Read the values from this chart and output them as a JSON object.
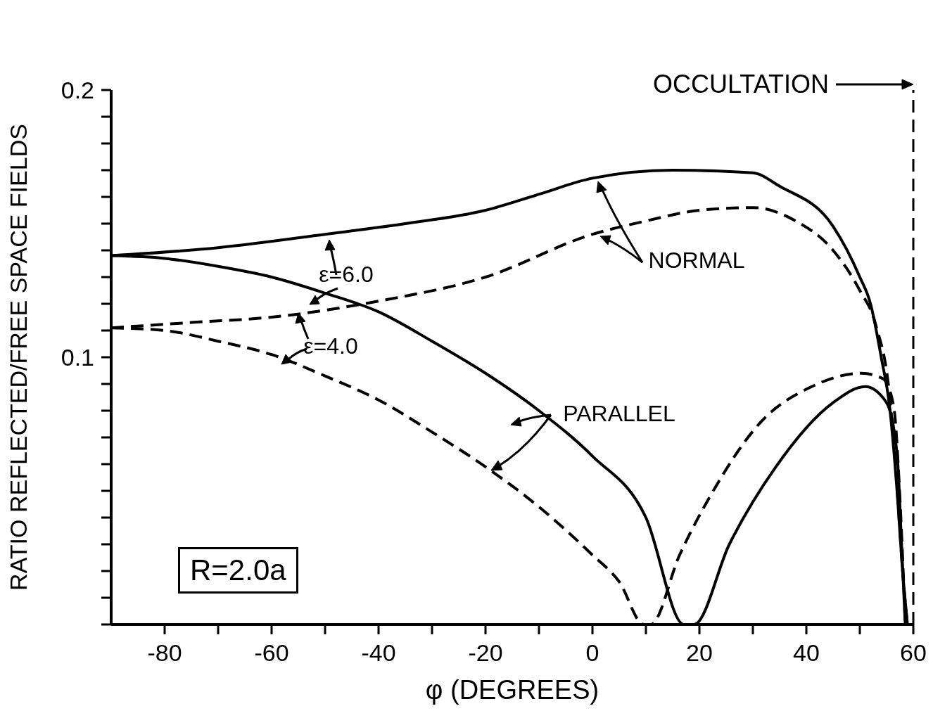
{
  "chart_data": {
    "type": "line",
    "xlabel": "φ (DEGREES)",
    "ylabel": "RATIO REFLECTED/FREE SPACE FIELDS",
    "xlim": [
      -90,
      60
    ],
    "ylim": [
      0,
      0.2
    ],
    "xticks": [
      -80,
      {
        "value": -70,
        "label": null
      },
      -60,
      {
        "value": -50,
        "label": null
      },
      -40,
      {
        "value": -30,
        "label": null
      },
      -20,
      {
        "value": -10,
        "label": null
      },
      0,
      {
        "value": 10,
        "label": null
      },
      20,
      {
        "value": 30,
        "label": null
      },
      40,
      {
        "value": 50,
        "label": null
      },
      60
    ],
    "yticks": [
      {
        "value": 0,
        "label": null
      },
      {
        "value": 0.01,
        "label": null
      },
      {
        "value": 0.02,
        "label": null
      },
      {
        "value": 0.03,
        "label": null
      },
      {
        "value": 0.04,
        "label": null
      },
      {
        "value": 0.05,
        "label": null
      },
      {
        "value": 0.06,
        "label": null
      },
      {
        "value": 0.07,
        "label": null
      },
      {
        "value": 0.08,
        "label": null
      },
      {
        "value": 0.09,
        "label": null
      },
      {
        "value": 0.1,
        "label": "0.1"
      },
      {
        "value": 0.11,
        "label": null
      },
      {
        "value": 0.12,
        "label": null
      },
      {
        "value": 0.13,
        "label": null
      },
      {
        "value": 0.14,
        "label": null
      },
      {
        "value": 0.15,
        "label": null
      },
      {
        "value": 0.16,
        "label": null
      },
      {
        "value": 0.17,
        "label": null
      },
      {
        "value": 0.18,
        "label": null
      },
      {
        "value": 0.19,
        "label": null
      },
      {
        "value": 0.2,
        "label": "0.2"
      }
    ],
    "grid": false,
    "marker": "none",
    "series": [
      {
        "color": "#000000",
        "line_style": "solid",
        "x": [
          -90,
          -70,
          -50,
          -35,
          -20,
          -10,
          0,
          15,
          30,
          35,
          45,
          50,
          52,
          54,
          55.6,
          57,
          58,
          58.9
        ],
        "values": [
          0.138,
          0.141,
          0.146,
          0.15,
          0.155,
          0.161,
          0.167,
          0.17,
          0.169,
          0.164,
          0.149,
          0.13,
          0.12,
          0.1,
          0.081,
          0.049,
          0.02,
          0
        ]
      },
      {
        "color": "#000000",
        "line_style": "dashed",
        "x": [
          -90,
          -75,
          -60,
          -40,
          -20,
          0,
          10,
          20,
          30,
          38,
          45,
          50,
          53,
          55.6,
          57,
          58,
          58.9
        ],
        "values": [
          0.111,
          0.113,
          0.115,
          0.121,
          0.13,
          0.146,
          0.151,
          0.155,
          0.156,
          0.151,
          0.14,
          0.125,
          0.112,
          0.085,
          0.05,
          0.02,
          0
        ]
      },
      {
        "color": "#000000",
        "line_style": "solid",
        "x": [
          -90,
          -80,
          -70,
          -60,
          -50,
          -40,
          -30,
          -20,
          -10,
          0,
          10,
          17.1,
          19,
          25.6,
          34.3,
          45,
          51,
          55,
          57,
          57.8,
          58.5
        ],
        "values": [
          0.138,
          0.137,
          0.134,
          0.13,
          0.124,
          0.117,
          0.106,
          0.094,
          0.08,
          0.063,
          0.04,
          0,
          0,
          0.03,
          0.059,
          0.083,
          0.089,
          0.083,
          0.063,
          0.03,
          0
        ]
      },
      {
        "color": "#000000",
        "line_style": "dashed",
        "x": [
          -90,
          -80,
          -70,
          -60,
          -50,
          -40,
          -30,
          -20,
          -10,
          0,
          5,
          9.6,
          10.9,
          16.3,
          22.3,
          31.6,
          41,
          50.3,
          54.3,
          56.3,
          57.6,
          58.5
        ],
        "values": [
          0.111,
          0.11,
          0.106,
          0.101,
          0.093,
          0.084,
          0.072,
          0.059,
          0.044,
          0.026,
          0.016,
          0,
          0,
          0.026,
          0.049,
          0.076,
          0.089,
          0.094,
          0.092,
          0.082,
          0.043,
          0
        ]
      }
    ],
    "ref_lines": [
      {
        "axis": "x",
        "value": 60,
        "label": "OCCULTATION",
        "color": "#000000",
        "line_style": "dashed"
      }
    ],
    "annotations": [
      "ε=6.0",
      "ε=4.0",
      "NORMAL",
      "PARALLEL",
      "R=2.0a"
    ]
  }
}
